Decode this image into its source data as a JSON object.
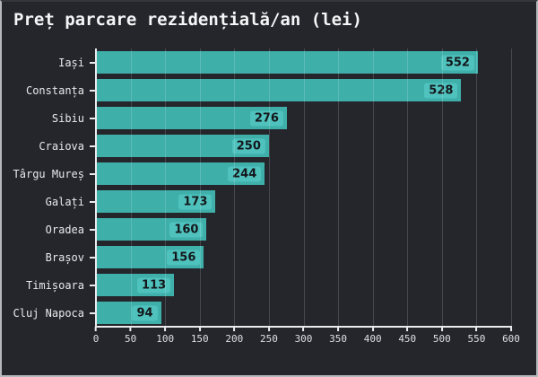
{
  "window": {
    "background": "#24262b",
    "border_color": "#b5b9bc"
  },
  "chart_data": {
    "type": "bar",
    "orientation": "horizontal",
    "title": "Preț parcare rezidențială/an (lei)",
    "categories": [
      "Iași",
      "Constanța",
      "Sibiu",
      "Craiova",
      "Târgu Mureș",
      "Galați",
      "Oradea",
      "Brașov",
      "Timișoara",
      "Cluj Napoca"
    ],
    "values": [
      552,
      528,
      276,
      250,
      244,
      173,
      160,
      156,
      113,
      94
    ],
    "xlabel": "",
    "ylabel": "",
    "xlim": [
      0,
      600
    ],
    "xticks": [
      0,
      50,
      100,
      150,
      200,
      250,
      300,
      350,
      400,
      450,
      500,
      550,
      600
    ],
    "grid": "vertical",
    "legend": "none",
    "value_labels": "inside-end",
    "colors": {
      "bar": "#3fafaa",
      "value_chip_bg": "#4fc2bd",
      "value_text": "#14171b",
      "axis": "#e8eaec",
      "grid_line": "rgba(255,255,255,0.16)",
      "tick_text": "#dde0e2",
      "title_text": "#f4f6f7"
    }
  }
}
